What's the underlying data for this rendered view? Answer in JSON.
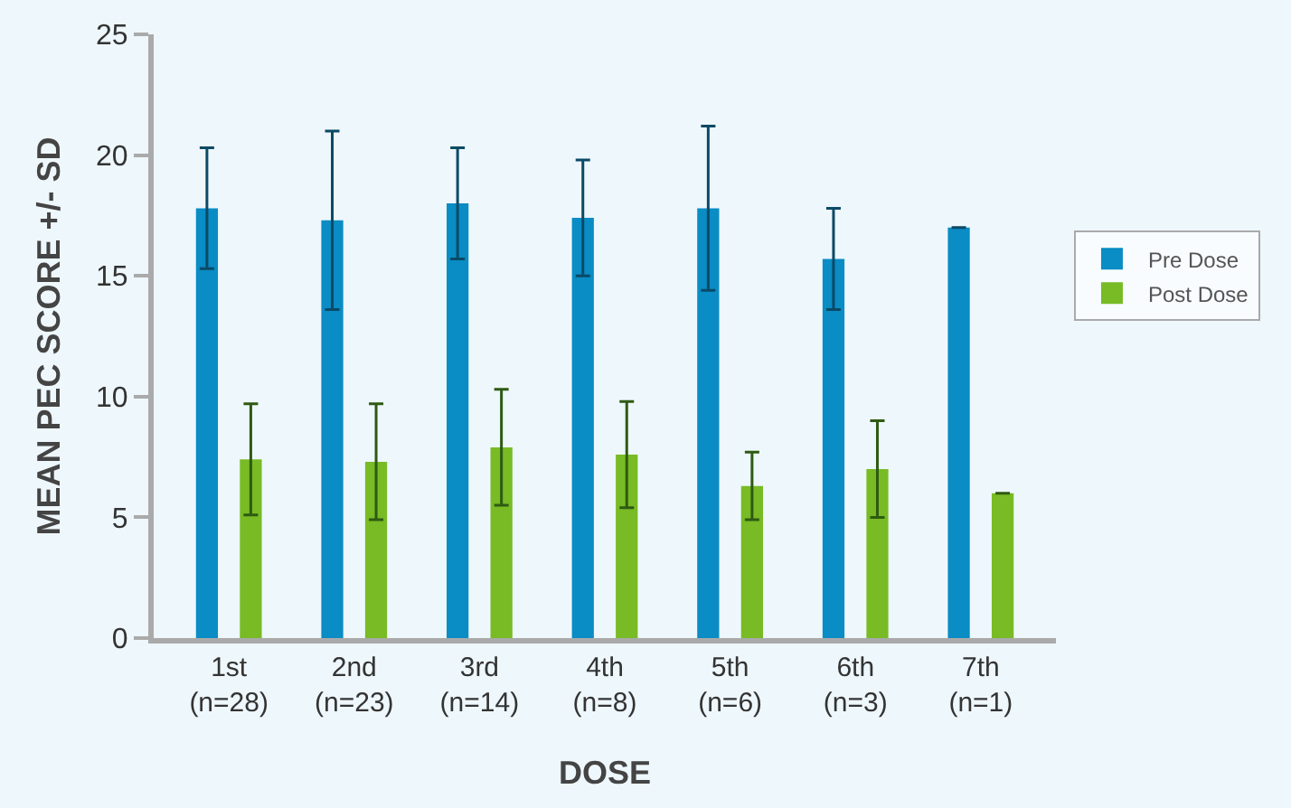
{
  "chart_data": {
    "type": "bar",
    "xlabel": "DOSE",
    "ylabel": "MEAN PEC SCORE +/- SD",
    "categories": [
      "1st\n(n=28)",
      "2nd\n(n=23)",
      "3rd\n(n=14)",
      "4th\n(n=8)",
      "5th\n(n=6)",
      "6th\n(n=3)",
      "7th\n(n=1)"
    ],
    "series": [
      {
        "name": "Pre Dose",
        "color": "#0a8cc4",
        "values": [
          17.8,
          17.3,
          18.0,
          17.4,
          17.8,
          15.7,
          17.0
        ],
        "errors": [
          2.5,
          3.7,
          2.3,
          2.4,
          3.4,
          2.1,
          null
        ]
      },
      {
        "name": "Post Dose",
        "color": "#78bb25",
        "values": [
          7.4,
          7.3,
          7.9,
          7.6,
          6.3,
          7.0,
          6.0
        ],
        "errors": [
          2.3,
          2.4,
          2.4,
          2.2,
          1.4,
          2.0,
          null
        ]
      }
    ],
    "ylim": [
      0,
      25
    ],
    "yticks": [
      0,
      5,
      10,
      15,
      20,
      25
    ],
    "grid": false,
    "legend": "right"
  }
}
